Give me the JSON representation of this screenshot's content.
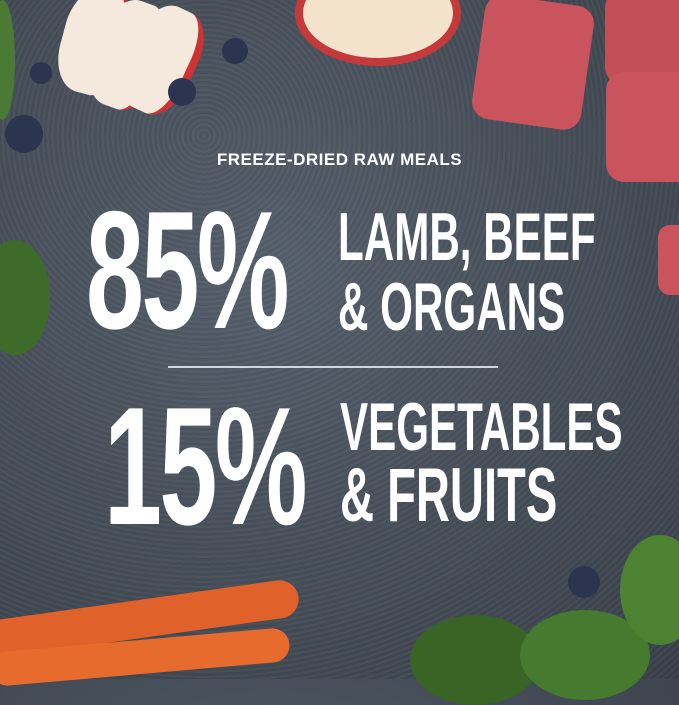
{
  "subtitle": "FREEZE-DRIED RAW MEALS",
  "stats": [
    {
      "percent": "85%",
      "line1": "LAMB, BEEF",
      "line2": "& ORGANS"
    },
    {
      "percent": "15%",
      "line1": "VEGETABLES",
      "line2": "& FRUITS"
    }
  ],
  "colors": {
    "background": "#474f5a",
    "text": "#ffffff",
    "meat": "#c9545e",
    "carrot": "#e0622a",
    "spinach": "#3e6b2a",
    "blueberry": "#2c3550",
    "apple": "#f2e6d6"
  }
}
